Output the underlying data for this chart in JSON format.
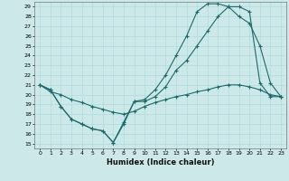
{
  "xlabel": "Humidex (Indice chaleur)",
  "xlim": [
    -0.5,
    23.5
  ],
  "ylim": [
    14.5,
    29.5
  ],
  "xticks": [
    0,
    1,
    2,
    3,
    4,
    5,
    6,
    7,
    8,
    9,
    10,
    11,
    12,
    13,
    14,
    15,
    16,
    17,
    18,
    19,
    20,
    21,
    22,
    23
  ],
  "yticks": [
    15,
    16,
    17,
    18,
    19,
    20,
    21,
    22,
    23,
    24,
    25,
    26,
    27,
    28,
    29
  ],
  "bg_color": "#cce8e8",
  "line_color": "#1a6b6b",
  "line1_x": [
    0,
    1,
    2,
    3,
    4,
    5,
    6,
    7,
    8,
    9,
    10,
    11,
    12,
    13,
    14,
    15,
    16,
    17,
    18,
    19,
    20,
    21,
    22,
    23
  ],
  "line1_y": [
    21.0,
    20.5,
    18.8,
    17.5,
    17.0,
    16.5,
    16.3,
    15.1,
    17.0,
    19.3,
    19.3,
    19.8,
    20.8,
    22.5,
    23.5,
    25.0,
    26.5,
    28.0,
    29.0,
    28.0,
    27.3,
    25.0,
    21.2,
    19.8
  ],
  "line2_x": [
    0,
    1,
    2,
    3,
    4,
    5,
    6,
    7,
    8,
    9,
    10,
    11,
    12,
    13,
    14,
    15,
    16,
    17,
    18,
    19,
    20,
    21,
    22,
    23
  ],
  "line2_y": [
    21.0,
    20.5,
    18.8,
    17.5,
    17.0,
    16.5,
    16.3,
    15.1,
    17.2,
    19.3,
    19.5,
    20.5,
    22.0,
    24.0,
    26.0,
    28.5,
    29.3,
    29.3,
    29.0,
    29.0,
    28.5,
    21.2,
    19.8,
    19.8
  ],
  "line3_x": [
    0,
    1,
    2,
    3,
    4,
    5,
    6,
    7,
    8,
    9,
    10,
    11,
    12,
    13,
    14,
    15,
    16,
    17,
    18,
    19,
    20,
    21,
    22,
    23
  ],
  "line3_y": [
    21.0,
    20.3,
    20.0,
    19.5,
    19.2,
    18.8,
    18.5,
    18.2,
    18.0,
    18.3,
    18.8,
    19.2,
    19.5,
    19.8,
    20.0,
    20.3,
    20.5,
    20.8,
    21.0,
    21.0,
    20.8,
    20.5,
    20.0,
    19.8
  ]
}
